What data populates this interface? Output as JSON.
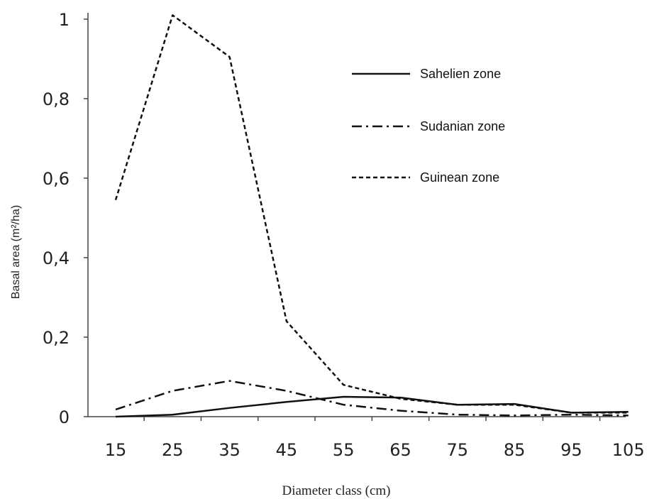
{
  "chart_data": {
    "type": "line",
    "title": "",
    "xlabel": "Diameter class (cm)",
    "ylabel": "Basal area (m²/ha)",
    "categories": [
      "15",
      "25",
      "35",
      "45",
      "55",
      "65",
      "75",
      "85",
      "95",
      "105"
    ],
    "ylim": [
      0,
      1
    ],
    "yticks": [
      0,
      0.2,
      0.4,
      0.6,
      0.8,
      1
    ],
    "ytick_labels": [
      "0",
      "0,2",
      "0,4",
      "0,6",
      "0,8",
      "1"
    ],
    "grid": false,
    "legend_position": "top-right",
    "series": [
      {
        "name": "Sahelien zone",
        "style": "solid",
        "color": "#111111",
        "values": [
          0.0,
          0.005,
          0.022,
          0.037,
          0.05,
          0.048,
          0.03,
          0.032,
          0.01,
          0.012
        ]
      },
      {
        "name": "Sudanian zone",
        "style": "dash-dot",
        "color": "#111111",
        "values": [
          0.018,
          0.065,
          0.09,
          0.065,
          0.03,
          0.015,
          0.005,
          0.003,
          0.005,
          0.003
        ]
      },
      {
        "name": "Guinean zone",
        "style": "dashed",
        "color": "#111111",
        "values": [
          0.545,
          1.01,
          0.905,
          0.24,
          0.08,
          0.045,
          0.03,
          0.03,
          0.01,
          0.01
        ]
      }
    ]
  }
}
